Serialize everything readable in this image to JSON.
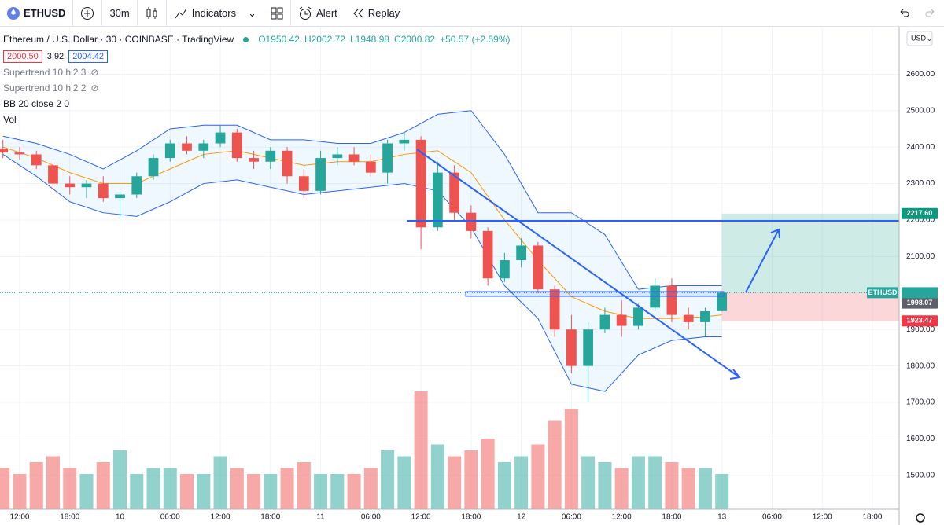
{
  "toolbar": {
    "symbol": "ETHUSD",
    "interval": "30m",
    "indicators": "Indicators",
    "alert": "Alert",
    "replay": "Replay"
  },
  "legend": {
    "title": "Ethereum / U.S. Dollar · 30 · COINBASE · TradingView",
    "ohlc": [
      "O1950.42",
      "H2002.72",
      "L1948.98",
      "C2000.82"
    ],
    "change": "+50.57 (+2.59%)",
    "bid": "2000.50",
    "spread": "3.92",
    "ask": "2004.42",
    "indicators": [
      "Supertrend 10 hl2 3",
      "Supertrend 10 hl2 2",
      "BB 20 close 2 0",
      "Vol"
    ]
  },
  "chart_data": {
    "type": "candlestick",
    "currency": "USD",
    "up_color": "#26a69a",
    "down_color": "#ef5350",
    "xlim": [
      -2.35,
      105.2
    ],
    "ylim": [
      1407,
      2730
    ],
    "vlim": [
      0,
      100
    ],
    "grid": true,
    "xticks": [
      {
        "value": 0,
        "label": "12:00"
      },
      {
        "value": 6,
        "label": "18:00"
      },
      {
        "value": 12,
        "label": "10"
      },
      {
        "value": 18,
        "label": "06:00"
      },
      {
        "value": 24,
        "label": "12:00"
      },
      {
        "value": 30,
        "label": "18:00"
      },
      {
        "value": 36,
        "label": "11"
      },
      {
        "value": 42,
        "label": "06:00"
      },
      {
        "value": 48,
        "label": "12:00"
      },
      {
        "value": 54,
        "label": "18:00"
      },
      {
        "value": 60,
        "label": "12"
      },
      {
        "value": 66,
        "label": "06:00"
      },
      {
        "value": 72,
        "label": "12:00"
      },
      {
        "value": 78,
        "label": "18:00"
      },
      {
        "value": 84,
        "label": "13"
      },
      {
        "value": 90,
        "label": "06:00"
      },
      {
        "value": 96,
        "label": "12:00"
      },
      {
        "value": 102,
        "label": "18:00"
      }
    ],
    "yticks": [
      {
        "value": 1500,
        "label": "1500.00"
      },
      {
        "value": 1600,
        "label": "1600.00"
      },
      {
        "value": 1700,
        "label": "1700.00"
      },
      {
        "value": 1800,
        "label": "1800.00"
      },
      {
        "value": 1900,
        "label": "1900.00"
      },
      {
        "value": 2000,
        "label": "2000.00"
      },
      {
        "value": 2100,
        "label": "2100.00"
      },
      {
        "value": 2200,
        "label": "2200.00"
      },
      {
        "value": 2300,
        "label": "2300.00"
      },
      {
        "value": 2400,
        "label": "2400.00"
      },
      {
        "value": 2500,
        "label": "2500.00"
      },
      {
        "value": 2600,
        "label": "2600.00"
      }
    ],
    "candles": [
      [
        -2,
        2395,
        2420,
        2370,
        2385
      ],
      [
        0,
        2385,
        2400,
        2365,
        2380
      ],
      [
        2,
        2380,
        2390,
        2340,
        2350
      ],
      [
        4,
        2350,
        2360,
        2280,
        2300
      ],
      [
        6,
        2300,
        2320,
        2270,
        2290
      ],
      [
        8,
        2290,
        2310,
        2260,
        2300
      ],
      [
        10,
        2300,
        2320,
        2250,
        2260
      ],
      [
        12,
        2260,
        2280,
        2200,
        2270
      ],
      [
        14,
        2270,
        2330,
        2260,
        2320
      ],
      [
        16,
        2320,
        2380,
        2310,
        2370
      ],
      [
        18,
        2370,
        2420,
        2360,
        2410
      ],
      [
        20,
        2410,
        2430,
        2380,
        2390
      ],
      [
        22,
        2390,
        2420,
        2370,
        2410
      ],
      [
        24,
        2410,
        2460,
        2400,
        2440
      ],
      [
        26,
        2440,
        2450,
        2360,
        2370
      ],
      [
        28,
        2370,
        2390,
        2340,
        2360
      ],
      [
        30,
        2360,
        2400,
        2340,
        2390
      ],
      [
        32,
        2390,
        2400,
        2300,
        2320
      ],
      [
        34,
        2320,
        2340,
        2260,
        2280
      ],
      [
        36,
        2280,
        2390,
        2270,
        2370
      ],
      [
        38,
        2370,
        2400,
        2350,
        2380
      ],
      [
        40,
        2380,
        2400,
        2350,
        2360
      ],
      [
        42,
        2360,
        2380,
        2320,
        2330
      ],
      [
        44,
        2330,
        2420,
        2300,
        2410
      ],
      [
        46,
        2410,
        2440,
        2390,
        2420
      ],
      [
        48,
        2420,
        2430,
        2120,
        2180
      ],
      [
        50,
        2180,
        2360,
        2170,
        2330
      ],
      [
        52,
        2330,
        2350,
        2200,
        2220
      ],
      [
        54,
        2220,
        2240,
        2150,
        2170
      ],
      [
        56,
        2170,
        2180,
        2020,
        2040
      ],
      [
        58,
        2040,
        2110,
        2030,
        2090
      ],
      [
        60,
        2090,
        2150,
        2070,
        2130
      ],
      [
        62,
        2130,
        2140,
        2000,
        2010
      ],
      [
        64,
        2010,
        2020,
        1880,
        1900
      ],
      [
        66,
        1900,
        1940,
        1780,
        1800
      ],
      [
        68,
        1800,
        1920,
        1700,
        1900
      ],
      [
        70,
        1900,
        1960,
        1890,
        1940
      ],
      [
        72,
        1940,
        1980,
        1880,
        1910
      ],
      [
        74,
        1910,
        1970,
        1900,
        1960
      ],
      [
        76,
        1960,
        2040,
        1950,
        2020
      ],
      [
        78,
        2020,
        2040,
        1920,
        1940
      ],
      [
        80,
        1940,
        1960,
        1900,
        1920
      ],
      [
        82,
        1920,
        1960,
        1880,
        1950
      ],
      [
        84,
        1950.42,
        2002.72,
        1948.98,
        2000.82
      ]
    ],
    "volume": [
      35,
      30,
      40,
      45,
      35,
      30,
      40,
      50,
      30,
      35,
      35,
      30,
      30,
      45,
      35,
      30,
      30,
      35,
      40,
      30,
      30,
      30,
      35,
      50,
      45,
      100,
      55,
      45,
      50,
      60,
      40,
      45,
      55,
      75,
      85,
      45,
      40,
      35,
      45,
      45,
      40,
      35,
      35,
      30
    ],
    "bb": {
      "x": [
        -2,
        2,
        6,
        10,
        14,
        18,
        22,
        26,
        30,
        34,
        38,
        42,
        46,
        50,
        54,
        58,
        62,
        66,
        70,
        74,
        78,
        82,
        84
      ],
      "upper": [
        2430,
        2410,
        2380,
        2340,
        2390,
        2450,
        2460,
        2460,
        2420,
        2420,
        2410,
        2410,
        2440,
        2490,
        2500,
        2380,
        2220,
        2220,
        2160,
        2010,
        2020,
        2020,
        2020
      ],
      "basis": [
        2400,
        2370,
        2330,
        2300,
        2300,
        2340,
        2380,
        2390,
        2370,
        2350,
        2360,
        2360,
        2380,
        2390,
        2330,
        2200,
        2090,
        1990,
        1950,
        1930,
        1930,
        1935,
        1940
      ],
      "lower": [
        2380,
        2320,
        2250,
        2220,
        2210,
        2250,
        2300,
        2310,
        2290,
        2270,
        2280,
        2290,
        2300,
        2280,
        2180,
        2020,
        1930,
        1750,
        1730,
        1830,
        1870,
        1880,
        1880
      ],
      "line_color": "#2962ff",
      "basis_color": "#ff9800"
    },
    "price_labels": [
      {
        "value": 2217.6,
        "label": "2217.60",
        "color": "#089981"
      },
      {
        "value": 2000.82,
        "label": "ETHUSD",
        "color": "#26a69a"
      },
      {
        "value": 1998.07,
        "label": "1998.07",
        "color": "#5d606b"
      },
      {
        "value": 1923.47,
        "label": "1923.47",
        "color": "#f23645"
      }
    ]
  }
}
